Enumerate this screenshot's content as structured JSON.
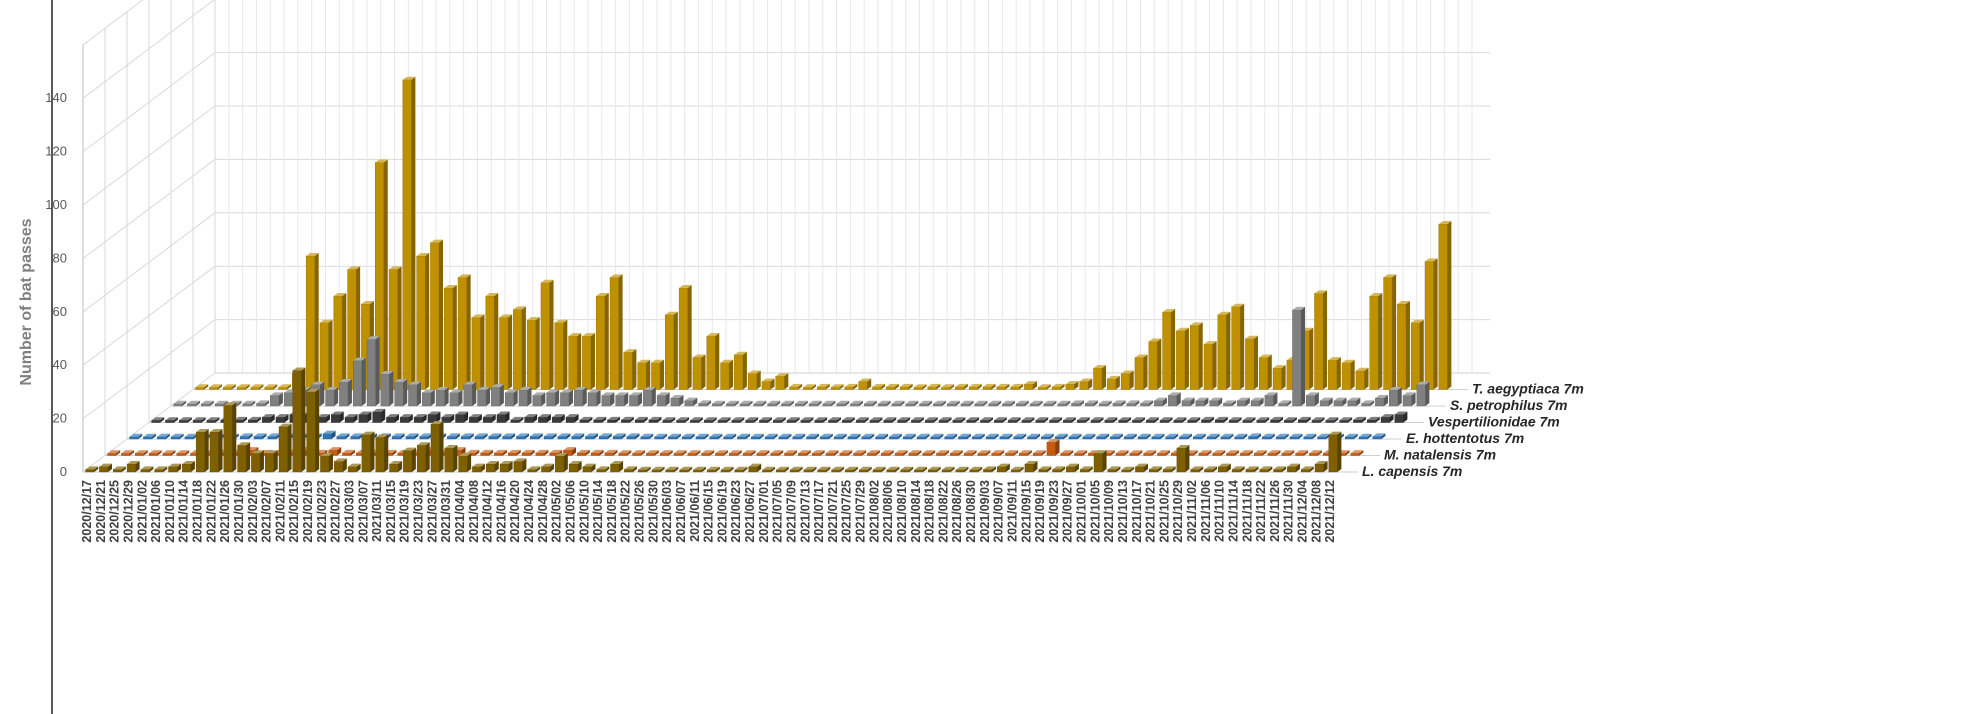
{
  "chart_data": {
    "type": "bar",
    "style": "3d-column",
    "ylabel": "Number of bat passes",
    "y_ticks": [
      0,
      20,
      40,
      60,
      80,
      100,
      120,
      140
    ],
    "ylim": [
      0,
      160
    ],
    "grid": true,
    "legend": "series labels at right end of each depth row",
    "x_tick_labels": [
      "2020/12/17",
      "2020/12/21",
      "2020/12/25",
      "2020/12/29",
      "2021/01/02",
      "2021/01/06",
      "2021/01/10",
      "2021/01/14",
      "2021/01/18",
      "2021/01/22",
      "2021/01/26",
      "2021/01/30",
      "2021/02/03",
      "2021/02/07",
      "2021/02/11",
      "2021/02/15",
      "2021/02/19",
      "2021/02/23",
      "2021/02/27",
      "2021/03/03",
      "2021/03/07",
      "2021/03/11",
      "2021/03/15",
      "2021/03/19",
      "2021/03/23",
      "2021/03/27",
      "2021/03/31",
      "2021/04/04",
      "2021/04/08",
      "2021/04/12",
      "2021/04/16",
      "2021/04/20",
      "2021/04/24",
      "2021/04/28",
      "2021/05/02",
      "2021/05/06",
      "2021/05/10",
      "2021/05/14",
      "2021/05/18",
      "2021/05/22",
      "2021/05/26",
      "2021/05/30",
      "2021/06/03",
      "2021/06/07",
      "2021/06/11",
      "2021/06/15",
      "2021/06/19",
      "2021/06/23",
      "2021/06/27",
      "2021/07/01",
      "2021/07/05",
      "2021/07/09",
      "2021/07/13",
      "2021/07/17",
      "2021/07/21",
      "2021/07/25",
      "2021/07/29",
      "2021/08/02",
      "2021/08/06",
      "2021/08/10",
      "2021/08/14",
      "2021/08/18",
      "2021/08/22",
      "2021/08/26",
      "2021/08/30",
      "2021/09/03",
      "2021/09/07",
      "2021/09/11",
      "2021/09/15",
      "2021/09/19",
      "2021/09/23",
      "2021/09/27",
      "2021/10/01",
      "2021/10/05",
      "2021/10/09",
      "2021/10/13",
      "2021/10/17",
      "2021/10/21",
      "2021/10/25",
      "2021/10/29",
      "2021/11/02",
      "2021/11/06",
      "2021/11/10",
      "2021/11/14",
      "2021/11/18",
      "2021/11/22",
      "2021/11/26",
      "2021/11/30",
      "2021/12/04",
      "2021/12/08",
      "2021/12/12"
    ],
    "x_interval_days": 4,
    "series": [
      {
        "name": "L. capensis 7m",
        "color": "#7f6000",
        "values": [
          1,
          2,
          1,
          3,
          1,
          1,
          2,
          3,
          15,
          15,
          25,
          10,
          7,
          7,
          17,
          38,
          30,
          6,
          4,
          2,
          14,
          13,
          3,
          8,
          10,
          18,
          9,
          6,
          2,
          3,
          3,
          4,
          1,
          2,
          6,
          3,
          2,
          1,
          3,
          1,
          0,
          0,
          0,
          0,
          0,
          0,
          0,
          0,
          2,
          0,
          0,
          0,
          0,
          0,
          0,
          0,
          0,
          0,
          0,
          0,
          0,
          0,
          0,
          0,
          0,
          1,
          2,
          0,
          3,
          1,
          1,
          2,
          1,
          7,
          1,
          0,
          2,
          1,
          1,
          9,
          1,
          1,
          2,
          1,
          1,
          1,
          1,
          2,
          1,
          3,
          14
        ]
      },
      {
        "name": "M. natalensis 7m",
        "color": "#c55a11",
        "values": [
          0,
          0,
          0,
          0,
          0,
          0,
          0,
          0,
          1,
          1,
          2,
          1,
          1,
          1,
          2,
          1,
          2,
          1,
          1,
          1,
          1,
          1,
          1,
          2,
          1,
          2,
          1,
          1,
          1,
          1,
          1,
          1,
          1,
          2,
          1,
          1,
          1,
          0,
          0,
          0,
          0,
          0,
          0,
          0,
          0,
          0,
          0,
          0,
          0,
          0,
          0,
          0,
          0,
          0,
          0,
          0,
          0,
          0,
          0,
          0,
          0,
          0,
          0,
          0,
          0,
          0,
          0,
          0,
          5,
          0,
          0,
          0,
          0,
          0,
          0,
          0,
          0,
          0,
          0,
          0,
          0,
          0,
          0,
          0,
          0,
          0,
          0,
          0,
          0,
          0,
          0
        ]
      },
      {
        "name": "E. hottentotus 7m",
        "color": "#2e75b6",
        "values": [
          0,
          0,
          0,
          0,
          0,
          0,
          0,
          0,
          1,
          1,
          1,
          1,
          1,
          1,
          2,
          1,
          1,
          1,
          1,
          1,
          1,
          1,
          1,
          1,
          1,
          1,
          1,
          1,
          1,
          1,
          1,
          1,
          1,
          1,
          1,
          1,
          1,
          0,
          0,
          0,
          0,
          0,
          0,
          0,
          0,
          0,
          0,
          0,
          0,
          0,
          0,
          0,
          0,
          0,
          0,
          0,
          0,
          0,
          0,
          0,
          0,
          0,
          0,
          0,
          0,
          0,
          0,
          0,
          0,
          0,
          0,
          0,
          0,
          0,
          0,
          0,
          0,
          0,
          0,
          0,
          0,
          1,
          0,
          0,
          0,
          0,
          0,
          0,
          0,
          0,
          1
        ]
      },
      {
        "name": "Vespertilionidae 7m",
        "color": "#3a3a3a",
        "values": [
          0,
          0,
          0,
          0,
          0,
          1,
          1,
          1,
          2,
          2,
          3,
          3,
          2,
          3,
          2,
          3,
          4,
          2,
          2,
          2,
          3,
          2,
          3,
          2,
          2,
          3,
          1,
          2,
          2,
          2,
          2,
          1,
          1,
          1,
          1,
          1,
          1,
          0,
          0,
          0,
          0,
          0,
          0,
          0,
          0,
          0,
          0,
          0,
          0,
          0,
          0,
          0,
          0,
          0,
          0,
          0,
          0,
          0,
          0,
          0,
          0,
          0,
          0,
          0,
          0,
          0,
          0,
          0,
          0,
          0,
          0,
          0,
          0,
          0,
          0,
          0,
          1,
          1,
          0,
          0,
          0,
          1,
          0,
          1,
          0,
          0,
          0,
          1,
          1,
          2,
          3
        ]
      },
      {
        "name": "S. petrophilus 7m",
        "color": "#808080",
        "values": [
          0,
          0,
          0,
          0,
          0,
          0,
          1,
          4,
          5,
          6,
          8,
          6,
          9,
          17,
          25,
          12,
          9,
          8,
          5,
          6,
          5,
          8,
          6,
          7,
          5,
          6,
          4,
          5,
          5,
          6,
          5,
          4,
          4,
          4,
          6,
          4,
          3,
          2,
          1,
          0,
          0,
          0,
          0,
          0,
          0,
          0,
          0,
          0,
          0,
          0,
          0,
          0,
          0,
          0,
          0,
          0,
          0,
          0,
          0,
          0,
          0,
          0,
          0,
          0,
          0,
          1,
          1,
          0,
          1,
          1,
          1,
          2,
          4,
          2,
          2,
          2,
          1,
          2,
          2,
          4,
          1,
          36,
          4,
          2,
          2,
          2,
          1,
          3,
          6,
          4,
          8
        ]
      },
      {
        "name": "T. aegyptiaca 7m",
        "color": "#bf9000",
        "values": [
          0,
          0,
          0,
          0,
          0,
          0,
          0,
          6,
          50,
          25,
          35,
          45,
          32,
          85,
          45,
          116,
          50,
          55,
          38,
          42,
          27,
          35,
          27,
          30,
          26,
          40,
          25,
          20,
          20,
          35,
          42,
          14,
          10,
          10,
          28,
          38,
          12,
          20,
          10,
          13,
          6,
          3,
          5,
          1,
          0,
          1,
          0,
          1,
          3,
          1,
          1,
          1,
          0,
          1,
          0,
          1,
          1,
          1,
          1,
          1,
          2,
          0,
          1,
          2,
          3,
          8,
          4,
          6,
          12,
          18,
          29,
          22,
          24,
          17,
          28,
          31,
          19,
          12,
          8,
          11,
          22,
          36,
          11,
          10,
          7,
          35,
          42,
          32,
          25,
          48,
          62
        ]
      }
    ]
  }
}
